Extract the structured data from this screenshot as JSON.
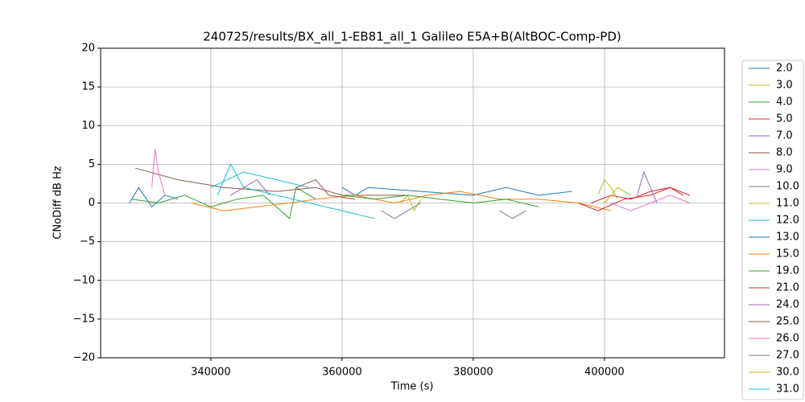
{
  "chart_data": {
    "type": "line",
    "title": "240725/results/BX_all_1-EB81_all_1 Galileo E5A+B(AltBOC-Comp-PD)",
    "x_label": "Time (s)",
    "y_label": "CNoDiff dB Hz",
    "xlim": [
      323200,
      418300
    ],
    "xticks": [
      340000,
      360000,
      380000,
      400000
    ],
    "ylim": [
      -20,
      20
    ],
    "yticks": [
      {
        "value": -20,
        "label": "−20"
      },
      {
        "value": -15,
        "label": "−15"
      },
      {
        "value": -10,
        "label": "−10"
      },
      {
        "value": -5,
        "label": "−5"
      },
      0,
      5,
      10,
      15,
      20
    ],
    "grid": true,
    "legend": "outside-right",
    "series": [
      {
        "name": "2.0",
        "color": "#1f77b4",
        "x": [
          327600,
          329000,
          331000,
          333000,
          335000
        ],
        "values": [
          0,
          2,
          -0.5,
          1,
          0.5
        ]
      },
      {
        "name": "3.0",
        "color": "#bcbd22",
        "x": [
          369000,
          370000,
          371000,
          372000
        ],
        "values": [
          0,
          1,
          -1,
          0.5
        ]
      },
      {
        "name": "4.0",
        "color": "#2ca02c",
        "x": [
          328000,
          332000,
          336000,
          340000,
          344000,
          348000,
          352000,
          353000,
          356000
        ],
        "values": [
          0.5,
          0,
          1,
          -0.5,
          0.5,
          1,
          -2,
          2,
          0.5
        ]
      },
      {
        "name": "5.0",
        "color": "#d62728",
        "x": [
          398000,
          401000,
          404000,
          407000,
          410000,
          412000
        ],
        "values": [
          0,
          1,
          0.5,
          1.5,
          2,
          1
        ]
      },
      {
        "name": "7.0",
        "color": "#9467bd",
        "x": [
          343000,
          345000,
          347000,
          349000
        ],
        "values": [
          1,
          2,
          3,
          1
        ]
      },
      {
        "name": "8.0",
        "color": "#8c564b",
        "x": [
          328500,
          335000,
          342000,
          350000,
          356000,
          360000,
          370000
        ],
        "values": [
          4.5,
          3,
          2,
          1.5,
          2,
          1,
          1
        ]
      },
      {
        "name": "9.0",
        "color": "#e377c2",
        "x": [
          331000,
          331500,
          332000,
          333000
        ],
        "values": [
          2,
          7,
          4,
          1
        ]
      },
      {
        "name": "10.0",
        "color": "#7f7f7f",
        "x": [
          384000,
          386000,
          388000
        ],
        "values": [
          -1,
          -2,
          -1
        ]
      },
      {
        "name": "11.0",
        "color": "#bcbd22",
        "x": [
          399000,
          400000,
          401000,
          402000
        ],
        "values": [
          1,
          3,
          2,
          0.5
        ]
      },
      {
        "name": "12.0",
        "color": "#17becf",
        "x": [
          340000,
          345000,
          350000,
          355000
        ],
        "values": [
          2,
          4,
          3,
          2
        ]
      },
      {
        "name": "13.0",
        "color": "#1f77b4",
        "x": [
          360000,
          362000,
          364000,
          380000,
          385000,
          390000,
          395000
        ],
        "values": [
          2,
          1,
          2,
          1,
          2,
          1,
          1.5
        ]
      },
      {
        "name": "15.0",
        "color": "#ff7f0e",
        "x": [
          337000,
          342000,
          347000,
          352000,
          356000,
          362000,
          368000,
          373000,
          378000,
          384000,
          390000,
          396000,
          401000
        ],
        "values": [
          0,
          -1,
          -0.5,
          0,
          0.5,
          1,
          0,
          1,
          1.5,
          0.5,
          0.5,
          0,
          -1
        ]
      },
      {
        "name": "19.0",
        "color": "#2ca02c",
        "x": [
          360000,
          365000,
          370000,
          375000,
          380000,
          385000,
          390000
        ],
        "values": [
          1,
          0.5,
          1,
          0.5,
          0,
          0.5,
          -0.5
        ]
      },
      {
        "name": "21.0",
        "color": "#d62728",
        "x": [
          396000,
          399000,
          403000,
          407000,
          410000,
          413000
        ],
        "values": [
          0,
          -1,
          0.5,
          1,
          2,
          1
        ]
      },
      {
        "name": "24.0",
        "color": "#9467bd",
        "x": [
          405000,
          406000,
          407000,
          408000
        ],
        "values": [
          1,
          4,
          2,
          0
        ]
      },
      {
        "name": "25.0",
        "color": "#8c564b",
        "x": [
          353000,
          356000,
          358000,
          362000
        ],
        "values": [
          2,
          3,
          1,
          0.5
        ]
      },
      {
        "name": "26.0",
        "color": "#e377c2",
        "x": [
          401000,
          404000,
          407000,
          410000,
          413000
        ],
        "values": [
          0,
          -1,
          0,
          1,
          0
        ]
      },
      {
        "name": "27.0",
        "color": "#7f7f7f",
        "x": [
          366000,
          368000,
          370000,
          372000
        ],
        "values": [
          -1,
          -2,
          -1,
          0
        ]
      },
      {
        "name": "30.0",
        "color": "#bcbd22",
        "x": [
          400000,
          402000,
          404000
        ],
        "values": [
          0,
          2,
          1
        ]
      },
      {
        "name": "31.0",
        "color": "#17becf",
        "x": [
          341000,
          343000,
          345000,
          355000,
          360000,
          365000
        ],
        "values": [
          1,
          5,
          2,
          0,
          -1,
          -2
        ]
      }
    ]
  }
}
